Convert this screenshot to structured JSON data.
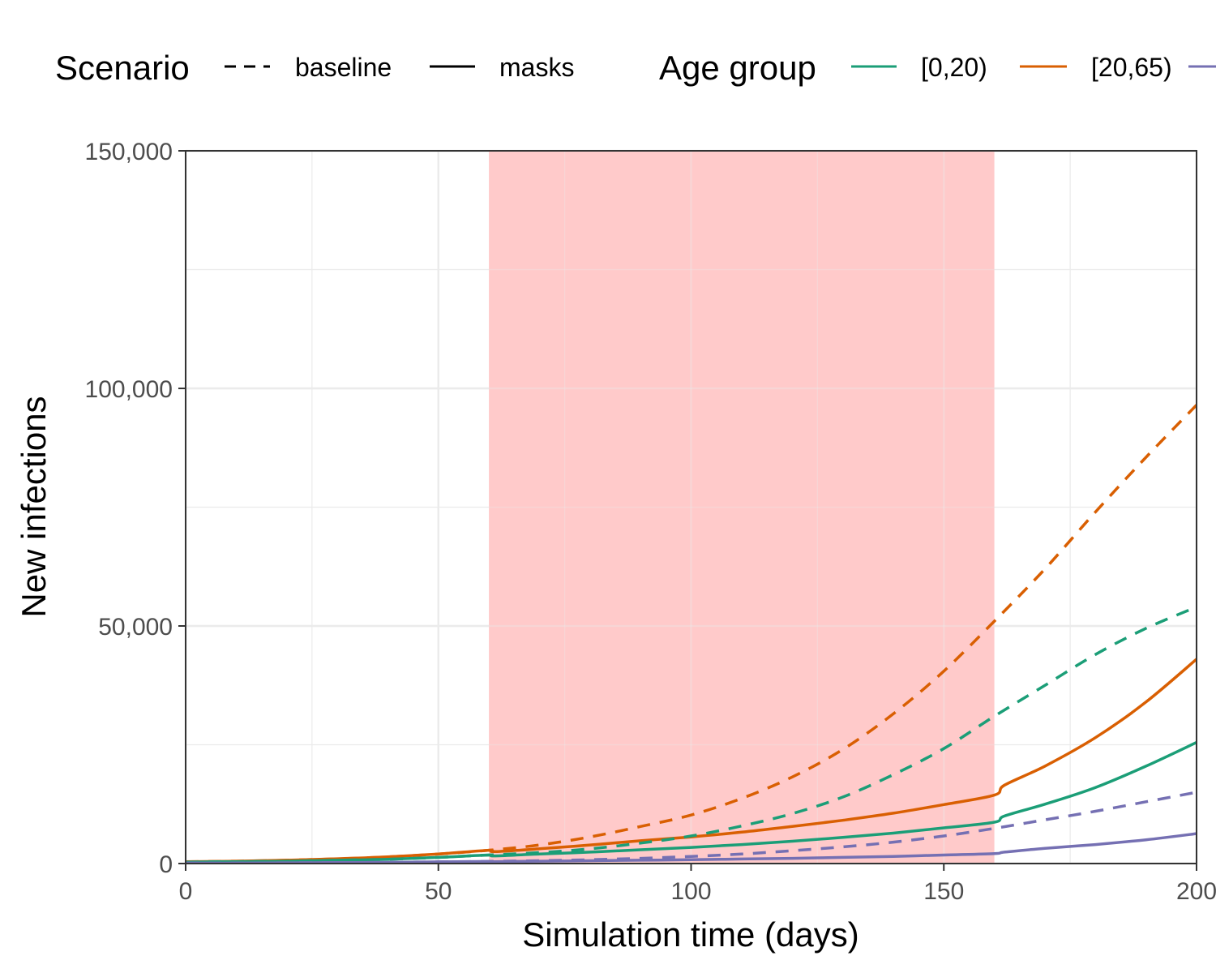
{
  "chart_data": {
    "type": "line",
    "title": "",
    "xlabel": "Simulation time (days)",
    "ylabel": "New infections",
    "xlim": [
      0,
      200
    ],
    "ylim": [
      0,
      150000
    ],
    "x_ticks": [
      0,
      50,
      100,
      150,
      200
    ],
    "x_tick_labels": [
      "0",
      "50",
      "100",
      "150",
      "200"
    ],
    "y_ticks": [
      0,
      50000,
      100000,
      150000
    ],
    "y_tick_labels": [
      "0",
      "50,000",
      "100,000",
      "150,000"
    ],
    "grid": true,
    "legend_position": "top",
    "shaded_region": {
      "x_start": 60,
      "x_end": 160,
      "color": "#ffcaca"
    },
    "legend": {
      "scenario_title": "Scenario",
      "scenarios": [
        {
          "label": "baseline",
          "linetype": "dashed"
        },
        {
          "label": "masks",
          "linetype": "solid"
        }
      ],
      "age_title": "Age group",
      "age_groups": [
        {
          "label": "[0,20)",
          "color": "#1b9e77"
        },
        {
          "label": "[20,65)",
          "color": "#d95f02"
        },
        {
          "label": "",
          "color": "#7570b3"
        }
      ]
    },
    "series": [
      {
        "age_group": "[20,65)",
        "scenario": "baseline",
        "color": "#d95f02",
        "linetype": "dashed",
        "x": [
          0,
          10,
          20,
          30,
          40,
          50,
          60,
          70,
          80,
          90,
          100,
          110,
          120,
          130,
          140,
          150,
          160,
          170,
          180,
          190,
          200
        ],
        "y": [
          400,
          500,
          700,
          1000,
          1400,
          2000,
          2800,
          3900,
          5600,
          7800,
          10200,
          13700,
          18200,
          24000,
          31500,
          40500,
          51000,
          62000,
          74000,
          85500,
          96500
        ]
      },
      {
        "age_group": "[20,65)",
        "scenario": "masks",
        "color": "#d95f02",
        "linetype": "solid",
        "x": [
          0,
          10,
          20,
          30,
          40,
          50,
          60,
          61,
          70,
          80,
          90,
          100,
          110,
          120,
          130,
          140,
          150,
          160,
          162,
          170,
          180,
          190,
          200
        ],
        "y": [
          400,
          500,
          700,
          1000,
          1400,
          2000,
          2800,
          2500,
          3100,
          3900,
          4800,
          5600,
          6600,
          7800,
          9100,
          10600,
          12400,
          14400,
          16500,
          20500,
          26500,
          34000,
          43000
        ]
      },
      {
        "age_group": "[0,20)",
        "scenario": "baseline",
        "color": "#1b9e77",
        "linetype": "dashed",
        "x": [
          0,
          10,
          20,
          30,
          40,
          50,
          60,
          70,
          80,
          90,
          100,
          110,
          120,
          130,
          140,
          150,
          160,
          170,
          180,
          190,
          200
        ],
        "y": [
          300,
          400,
          500,
          700,
          900,
          1300,
          1800,
          2300,
          3100,
          4300,
          5800,
          7900,
          10500,
          14000,
          18700,
          24200,
          31000,
          37500,
          44000,
          49500,
          54000
        ]
      },
      {
        "age_group": "[0,20)",
        "scenario": "masks",
        "color": "#1b9e77",
        "linetype": "solid",
        "x": [
          0,
          10,
          20,
          30,
          40,
          50,
          60,
          61,
          70,
          80,
          90,
          100,
          110,
          120,
          130,
          140,
          150,
          160,
          162,
          170,
          180,
          190,
          200
        ],
        "y": [
          300,
          400,
          500,
          700,
          900,
          1300,
          1800,
          1600,
          2000,
          2400,
          2900,
          3400,
          4000,
          4700,
          5500,
          6400,
          7500,
          8700,
          10000,
          12500,
          16000,
          20500,
          25500
        ]
      },
      {
        "age_group": "",
        "scenario": "baseline",
        "color": "#7570b3",
        "linetype": "dashed",
        "x": [
          0,
          10,
          20,
          30,
          40,
          50,
          60,
          70,
          80,
          90,
          100,
          110,
          120,
          130,
          140,
          150,
          160,
          170,
          180,
          190,
          200
        ],
        "y": [
          100,
          100,
          150,
          200,
          250,
          350,
          450,
          600,
          800,
          1100,
          1500,
          2000,
          2700,
          3500,
          4500,
          5800,
          7400,
          9200,
          11000,
          13000,
          15000
        ]
      },
      {
        "age_group": "",
        "scenario": "masks",
        "color": "#7570b3",
        "linetype": "solid",
        "x": [
          0,
          10,
          20,
          30,
          40,
          50,
          60,
          61,
          70,
          80,
          90,
          100,
          110,
          120,
          130,
          140,
          150,
          160,
          162,
          170,
          180,
          190,
          200
        ],
        "y": [
          100,
          100,
          150,
          200,
          250,
          350,
          450,
          400,
          500,
          600,
          700,
          800,
          950,
          1100,
          1300,
          1500,
          1800,
          2100,
          2400,
          3200,
          4000,
          5000,
          6300
        ]
      }
    ]
  }
}
